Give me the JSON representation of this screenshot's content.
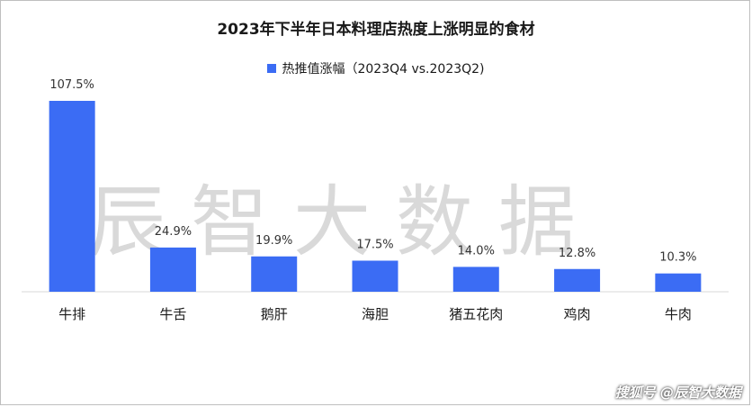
{
  "title": "2023年下半年日本料理店热度上涨明显的食材",
  "watermark": "辰智大数据",
  "footer": "搜狐号 @辰智大数据",
  "colors": {
    "bar": "#3b6cf4",
    "axis": "#d9d9d9",
    "label": "#333333"
  },
  "chart_data": {
    "type": "bar",
    "categories": [
      "牛排",
      "牛舌",
      "鹅肝",
      "海胆",
      "猪五花肉",
      "鸡肉",
      "牛肉"
    ],
    "series": [
      {
        "name": "热推值涨幅（2023Q4 vs.2023Q2)",
        "values": [
          107.5,
          24.9,
          19.9,
          17.5,
          14.0,
          12.8,
          10.3
        ]
      }
    ],
    "data_labels": [
      "107.5%",
      "24.9%",
      "19.9%",
      "17.5%",
      "14.0%",
      "12.8%",
      "10.3%"
    ],
    "title": "2023年下半年日本料理店热度上涨明显的食材",
    "xlabel": "",
    "ylabel": "",
    "ylim": [
      0,
      107.5
    ],
    "grid": false,
    "legend": "top"
  }
}
